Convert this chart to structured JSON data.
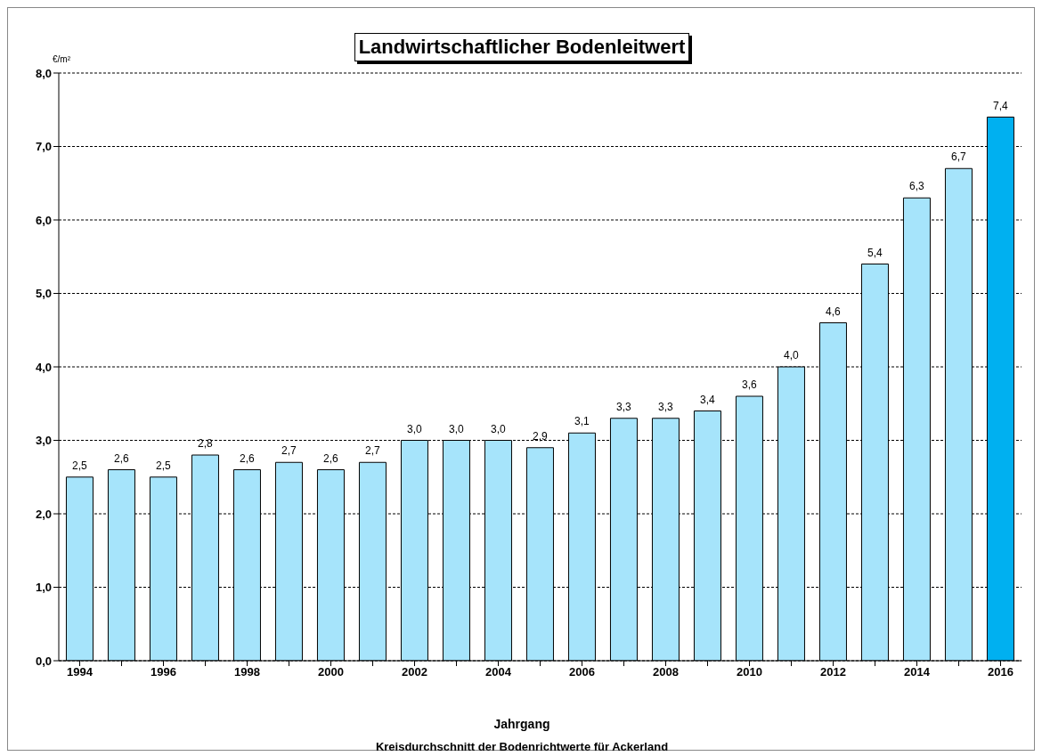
{
  "chart_data": {
    "type": "bar",
    "title": "Landwirtschaftlicher Bodenleitwert",
    "ylabel": "€/m²",
    "xlabel": "Jahrgang",
    "annotations": [
      "Kreisdurchschnitt der Bodenrichtwerte für Ackerland"
    ],
    "categories": [
      "1994",
      null,
      "1996",
      null,
      "1998",
      null,
      "2000",
      null,
      "2002",
      null,
      "2004",
      null,
      "2006",
      null,
      "2008",
      null,
      "2010",
      null,
      "2012",
      null,
      "2014",
      null,
      "2016"
    ],
    "values": [
      2.5,
      2.6,
      2.5,
      2.8,
      2.6,
      2.7,
      2.6,
      2.7,
      3.0,
      3.0,
      3.0,
      2.9,
      3.1,
      3.3,
      3.3,
      3.4,
      3.6,
      4.0,
      4.6,
      5.4,
      6.3,
      6.7,
      7.4
    ],
    "value_labels": [
      "2,5",
      "2,6",
      "2,5",
      "2,8",
      "2,6",
      "2,7",
      "2,6",
      "2,7",
      "3,0",
      "3,0",
      "3,0",
      "2,9",
      "3,1",
      "3,3",
      "3,3",
      "3,4",
      "3,6",
      "4,0",
      "4,6",
      "5,4",
      "6,3",
      "6,7",
      "7,4"
    ],
    "colors": [
      "#a6e4fb",
      "#a6e4fb",
      "#a6e4fb",
      "#a6e4fb",
      "#a6e4fb",
      "#a6e4fb",
      "#a6e4fb",
      "#a6e4fb",
      "#a6e4fb",
      "#a6e4fb",
      "#a6e4fb",
      "#a6e4fb",
      "#a6e4fb",
      "#a6e4fb",
      "#a6e4fb",
      "#a6e4fb",
      "#a6e4fb",
      "#a6e4fb",
      "#a6e4fb",
      "#a6e4fb",
      "#a6e4fb",
      "#a6e4fb",
      "#00b0f0"
    ],
    "ylim": [
      0,
      8
    ],
    "yticks": [
      {
        "value": 0,
        "label": "0,0"
      },
      {
        "value": 1,
        "label": "1,0"
      },
      {
        "value": 2,
        "label": "2,0"
      },
      {
        "value": 3,
        "label": "3,0"
      },
      {
        "value": 4,
        "label": "4,0"
      },
      {
        "value": 5,
        "label": "5,0"
      },
      {
        "value": 6,
        "label": "6,0"
      },
      {
        "value": 7,
        "label": "7,0"
      },
      {
        "value": 8,
        "label": "8,0"
      }
    ],
    "grid": "y"
  }
}
